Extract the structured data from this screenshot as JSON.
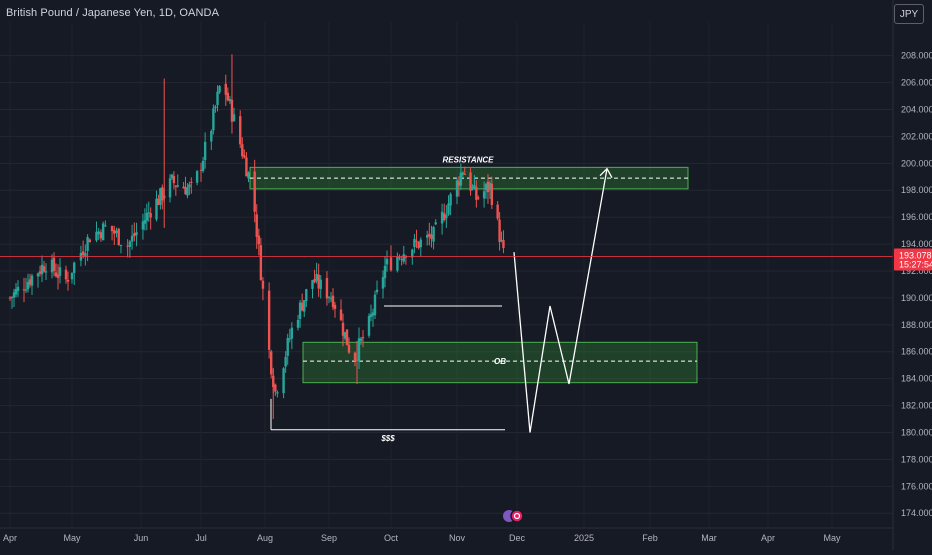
{
  "header": {
    "title": "British Pound / Japanese Yen, 1D, OANDA",
    "currency": "JPY"
  },
  "price_tag": {
    "price": "193.078",
    "countdown": "15:27:54"
  },
  "colors": {
    "background": "#161a25",
    "up": "#26a69a",
    "down": "#ef5350",
    "zone_fill": "#2e7d32",
    "zone_border": "#4caf50",
    "price_line": "#f23645",
    "drawing": "#ffffff"
  },
  "annotations": {
    "resistance": "RESISTANCE",
    "ob": "OB",
    "liquidity": "$$$"
  },
  "chart_data": {
    "type": "candlestick",
    "title": "British Pound / Japanese Yen, 1D, OANDA",
    "xlabel": "",
    "ylabel": "",
    "ylim": [
      173.2,
      210.5
    ],
    "y_ticks": [
      "174.000",
      "176.000",
      "178.000",
      "180.000",
      "182.000",
      "184.000",
      "186.000",
      "188.000",
      "190.000",
      "192.000",
      "194.000",
      "196.000",
      "198.000",
      "200.000",
      "202.000",
      "204.000",
      "206.000",
      "208.000"
    ],
    "x_ticks": [
      "Apr",
      "May",
      "Jun",
      "Jul",
      "Aug",
      "Sep",
      "Oct",
      "Nov",
      "Dec",
      "2025",
      "Feb",
      "Mar",
      "Apr",
      "May"
    ],
    "last_price": 193.078,
    "zones": [
      {
        "label": "RESISTANCE",
        "top": 199.7,
        "bottom": 198.1,
        "mid": 198.9
      },
      {
        "label": "OB",
        "top": 186.7,
        "bottom": 183.7,
        "mid": 185.3
      }
    ],
    "levels": [
      {
        "label": "",
        "price": 189.4
      },
      {
        "label": "$$$",
        "price": 180.2
      }
    ],
    "projection_path": [
      193.4,
      180.0,
      189.4,
      183.6,
      199.6
    ],
    "grid": true,
    "legend": "none"
  }
}
